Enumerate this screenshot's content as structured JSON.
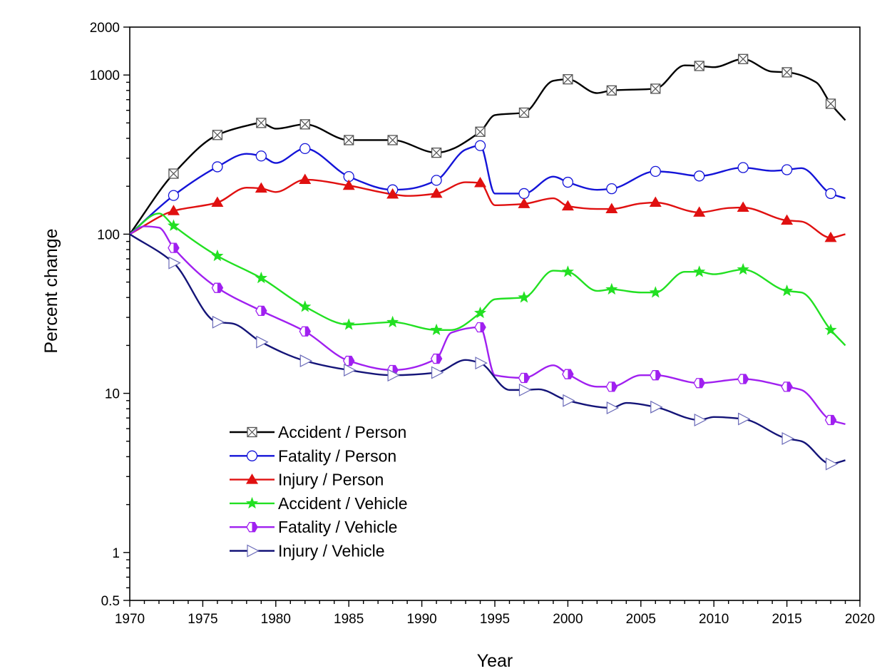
{
  "chart_data": {
    "type": "line",
    "xlabel": "Year",
    "ylabel": "Percent change",
    "xlim": [
      1970,
      2020
    ],
    "ylim": [
      0.5,
      2000
    ],
    "yscale": "log",
    "x_ticks": [
      1970,
      1975,
      1980,
      1985,
      1990,
      1995,
      2000,
      2005,
      2010,
      2015,
      2020
    ],
    "y_ticks": [
      0.5,
      1,
      10,
      100,
      1000,
      2000
    ],
    "y_tick_labels": [
      "0.5",
      "1",
      "10",
      "100",
      "1000",
      "2000"
    ],
    "legend_position": "lower-left",
    "grid": false,
    "series": [
      {
        "name": "Accident / Person",
        "color": "#000000",
        "marker": "boxed-x",
        "points": [
          [
            1970,
            100
          ],
          [
            1973,
            240
          ],
          [
            1976,
            420
          ],
          [
            1978,
            480
          ],
          [
            1979,
            500
          ],
          [
            1980,
            460
          ],
          [
            1982,
            490
          ],
          [
            1985,
            390
          ],
          [
            1988,
            390
          ],
          [
            1991,
            325
          ],
          [
            1994,
            440
          ],
          [
            1995,
            560
          ],
          [
            1997,
            580
          ],
          [
            1999,
            920
          ],
          [
            2000,
            940
          ],
          [
            2002,
            770
          ],
          [
            2003,
            800
          ],
          [
            2006,
            820
          ],
          [
            2008,
            1150
          ],
          [
            2009,
            1140
          ],
          [
            2010,
            1120
          ],
          [
            2012,
            1260
          ],
          [
            2014,
            1050
          ],
          [
            2015,
            1040
          ],
          [
            2017,
            900
          ],
          [
            2018,
            660
          ],
          [
            2019,
            520
          ]
        ],
        "marked": [
          1973,
          1976,
          1979,
          1982,
          1985,
          1988,
          1991,
          1994,
          1997,
          2000,
          2003,
          2006,
          2009,
          2012,
          2015,
          2018
        ]
      },
      {
        "name": "Fatality / Person",
        "color": "#1414d8",
        "marker": "open-circle",
        "points": [
          [
            1970,
            100
          ],
          [
            1973,
            175
          ],
          [
            1976,
            265
          ],
          [
            1978,
            320
          ],
          [
            1979,
            310
          ],
          [
            1980,
            280
          ],
          [
            1982,
            345
          ],
          [
            1985,
            230
          ],
          [
            1988,
            190
          ],
          [
            1989,
            192
          ],
          [
            1991,
            218
          ],
          [
            1993,
            340
          ],
          [
            1994,
            360
          ],
          [
            1995,
            180
          ],
          [
            1997,
            180
          ],
          [
            1999,
            230
          ],
          [
            2000,
            212
          ],
          [
            2002,
            190
          ],
          [
            2003,
            193
          ],
          [
            2006,
            248
          ],
          [
            2007,
            245
          ],
          [
            2009,
            232
          ],
          [
            2012,
            262
          ],
          [
            2014,
            250
          ],
          [
            2015,
            254
          ],
          [
            2016,
            260
          ],
          [
            2018,
            180
          ],
          [
            2019,
            168
          ]
        ],
        "marked": [
          1973,
          1976,
          1979,
          1982,
          1985,
          1988,
          1991,
          1994,
          1997,
          2000,
          2003,
          2006,
          2009,
          2012,
          2015,
          2018
        ]
      },
      {
        "name": "Injury / Person",
        "color": "#e01010",
        "marker": "filled-triangle",
        "points": [
          [
            1970,
            100
          ],
          [
            1973,
            140
          ],
          [
            1976,
            158
          ],
          [
            1978,
            196
          ],
          [
            1979,
            194
          ],
          [
            1980,
            184
          ],
          [
            1982,
            220
          ],
          [
            1985,
            202
          ],
          [
            1988,
            178
          ],
          [
            1989,
            174
          ],
          [
            1991,
            180
          ],
          [
            1993,
            212
          ],
          [
            1994,
            210
          ],
          [
            1995,
            152
          ],
          [
            1997,
            155
          ],
          [
            1999,
            168
          ],
          [
            2000,
            150
          ],
          [
            2002,
            144
          ],
          [
            2003,
            144
          ],
          [
            2005,
            156
          ],
          [
            2006,
            158
          ],
          [
            2009,
            137
          ],
          [
            2011,
            146
          ],
          [
            2012,
            147
          ],
          [
            2015,
            122
          ],
          [
            2016,
            120
          ],
          [
            2018,
            95
          ],
          [
            2019,
            100
          ]
        ],
        "marked": [
          1973,
          1976,
          1979,
          1982,
          1985,
          1988,
          1991,
          1994,
          1997,
          2000,
          2003,
          2006,
          2009,
          2012,
          2015,
          2018
        ]
      },
      {
        "name": "Accident / Vehicle",
        "color": "#22e022",
        "marker": "filled-star",
        "points": [
          [
            1970,
            100
          ],
          [
            1972,
            135
          ],
          [
            1973,
            113
          ],
          [
            1976,
            73
          ],
          [
            1979,
            53
          ],
          [
            1982,
            35
          ],
          [
            1985,
            27
          ],
          [
            1988,
            28
          ],
          [
            1991,
            25
          ],
          [
            1992,
            25
          ],
          [
            1994,
            32
          ],
          [
            1995,
            39
          ],
          [
            1997,
            40
          ],
          [
            1999,
            59
          ],
          [
            2000,
            58
          ],
          [
            2002,
            44
          ],
          [
            2003,
            45
          ],
          [
            2005,
            43
          ],
          [
            2006,
            43
          ],
          [
            2008,
            58
          ],
          [
            2009,
            58
          ],
          [
            2010,
            56
          ],
          [
            2012,
            60
          ],
          [
            2015,
            44
          ],
          [
            2016,
            43
          ],
          [
            2018,
            25
          ],
          [
            2019,
            20
          ]
        ],
        "marked": [
          1973,
          1976,
          1979,
          1982,
          1985,
          1988,
          1991,
          1994,
          1997,
          2000,
          2003,
          2006,
          2009,
          2012,
          2015,
          2018
        ]
      },
      {
        "name": "Fatality / Vehicle",
        "color": "#a020f0",
        "marker": "half-filled-hexagon",
        "points": [
          [
            1970,
            100
          ],
          [
            1971,
            112
          ],
          [
            1972,
            110
          ],
          [
            1973,
            82
          ],
          [
            1976,
            46
          ],
          [
            1979,
            33
          ],
          [
            1982,
            24.5
          ],
          [
            1985,
            16
          ],
          [
            1988,
            14
          ],
          [
            1991,
            16.5
          ],
          [
            1992,
            24
          ],
          [
            1994,
            26
          ],
          [
            1995,
            13
          ],
          [
            1997,
            12.5
          ],
          [
            1999,
            15
          ],
          [
            2000,
            13.2
          ],
          [
            2002,
            11
          ],
          [
            2003,
            11
          ],
          [
            2005,
            13
          ],
          [
            2006,
            13
          ],
          [
            2009,
            11.6
          ],
          [
            2012,
            12.3
          ],
          [
            2015,
            11
          ],
          [
            2016,
            10.5
          ],
          [
            2018,
            6.8
          ],
          [
            2019,
            6.4
          ]
        ],
        "marked": [
          1973,
          1976,
          1979,
          1982,
          1985,
          1988,
          1991,
          1994,
          1997,
          2000,
          2003,
          2006,
          2009,
          2012,
          2015,
          2018
        ]
      },
      {
        "name": "Injury / Vehicle",
        "color": "#141478",
        "marker": "open-right-triangle",
        "points": [
          [
            1970,
            100
          ],
          [
            1973,
            66
          ],
          [
            1976,
            28
          ],
          [
            1977,
            27.5
          ],
          [
            1979,
            21
          ],
          [
            1982,
            16
          ],
          [
            1985,
            14
          ],
          [
            1988,
            13
          ],
          [
            1991,
            13.5
          ],
          [
            1993,
            16.2
          ],
          [
            1994,
            15.5
          ],
          [
            1996,
            10.5
          ],
          [
            1997,
            10.5
          ],
          [
            1998,
            10.6
          ],
          [
            2000,
            9
          ],
          [
            2003,
            8.1
          ],
          [
            2004,
            8.7
          ],
          [
            2006,
            8.2
          ],
          [
            2009,
            6.8
          ],
          [
            2010,
            7.1
          ],
          [
            2012,
            6.9
          ],
          [
            2015,
            5.2
          ],
          [
            2016,
            5.0
          ],
          [
            2018,
            3.6
          ],
          [
            2019,
            3.8
          ]
        ],
        "marked": [
          1973,
          1976,
          1979,
          1982,
          1985,
          1988,
          1991,
          1994,
          1997,
          2000,
          2003,
          2006,
          2009,
          2012,
          2015,
          2018
        ]
      }
    ]
  }
}
